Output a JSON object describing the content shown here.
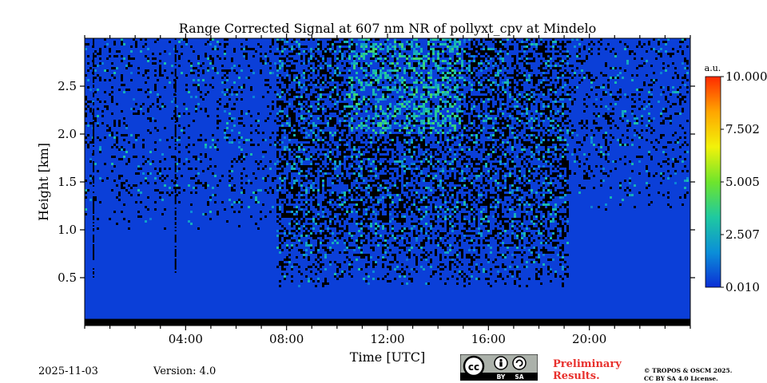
{
  "chart_data": {
    "type": "heatmap",
    "title": "Range Corrected Signal at 607 nm NR of pollyxt_cpv at Mindelo",
    "xlabel": "Time [UTC]",
    "ylabel": "Height [km]",
    "xlim": [
      0,
      24
    ],
    "ylim": [
      0,
      3.0
    ],
    "xticks": [
      {
        "value": 4,
        "label": "04:00"
      },
      {
        "value": 8,
        "label": "08:00"
      },
      {
        "value": 12,
        "label": "12:00"
      },
      {
        "value": 16,
        "label": "16:00"
      },
      {
        "value": 20,
        "label": "20:00"
      }
    ],
    "yticks": [
      {
        "value": 0.5,
        "label": "0.5"
      },
      {
        "value": 1.0,
        "label": "1.0"
      },
      {
        "value": 1.5,
        "label": "1.5"
      },
      {
        "value": 2.0,
        "label": "2.0"
      },
      {
        "value": 2.5,
        "label": "2.5"
      }
    ],
    "colorbar": {
      "unit": "a.u.",
      "range": [
        0.01,
        10.0
      ],
      "ticks": [
        {
          "value": 0.01,
          "label": "0.010"
        },
        {
          "value": 2.507,
          "label": "2.507"
        },
        {
          "value": 5.005,
          "label": "5.005"
        },
        {
          "value": 7.502,
          "label": "7.502"
        },
        {
          "value": 10.0,
          "label": "10.000"
        }
      ],
      "colors": [
        "#0b2fd6",
        "#0b8fd8",
        "#1fc9a0",
        "#6ee52c",
        "#f2f20a",
        "#ffa500",
        "#ff2a00"
      ]
    },
    "background_signal": 1.0,
    "noise_regions": [
      {
        "t_start": 0.0,
        "t_end": 7.6,
        "h_start": 1.0,
        "h_end": 3.0,
        "density": 0.15
      },
      {
        "t_start": 7.6,
        "t_end": 19.2,
        "h_start": 0.4,
        "h_end": 3.0,
        "density": 0.5
      },
      {
        "t_start": 19.2,
        "t_end": 24.0,
        "h_start": 1.2,
        "h_end": 3.0,
        "density": 0.18
      }
    ],
    "enhanced_region": {
      "t_start": 10.5,
      "t_end": 15.0,
      "h_start": 2.0,
      "h_end": 3.0,
      "value": 3.5
    },
    "dark_streaks": [
      {
        "t": 0.35,
        "h_start": 0.5,
        "h_end": 3.0
      },
      {
        "t": 3.6,
        "h_start": 0.55,
        "h_end": 3.0
      }
    ],
    "missing_band": {
      "h_start": 0.0,
      "h_end": 0.07
    }
  },
  "footer": {
    "date": "2025-11-03",
    "version": "Version: 4.0",
    "license_badge": [
      "cc",
      "BY",
      "SA"
    ],
    "preliminary_line1": "Preliminary",
    "preliminary_line2": "Results.",
    "copyright_line1": "© TROPOS & OSCM 2025.",
    "copyright_line2": "CC BY SA 4.0 License."
  }
}
